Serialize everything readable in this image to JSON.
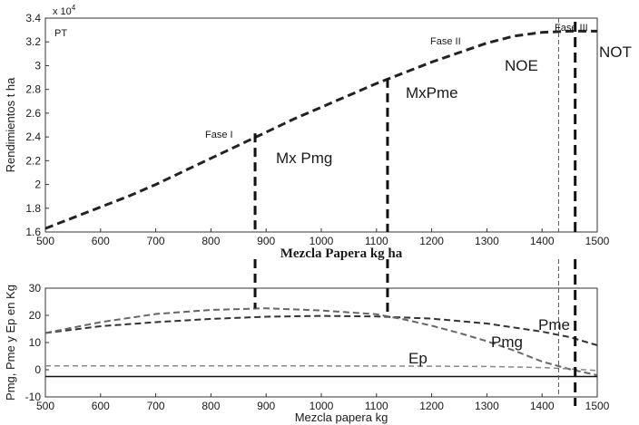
{
  "chart_data": [
    {
      "type": "line",
      "xlabel": "Mezcla Papera kg ha",
      "ylabel": "Rendimientos t ha",
      "y_multiplier": "x 10",
      "y_multiplier_exp": "4",
      "xlim": [
        500,
        1500
      ],
      "ylim": [
        1.6,
        3.4
      ],
      "xticks": [
        500,
        600,
        700,
        800,
        900,
        1000,
        1100,
        1200,
        1300,
        1400,
        1500
      ],
      "yticks": [
        1.6,
        1.8,
        2,
        2.2,
        2.4,
        2.6,
        2.8,
        3,
        3.2,
        3.4
      ],
      "series": [
        {
          "name": "PT",
          "color": "#222222",
          "x": [
            500,
            550,
            600,
            650,
            700,
            750,
            800,
            850,
            900,
            950,
            1000,
            1050,
            1100,
            1150,
            1200,
            1250,
            1300,
            1350,
            1400,
            1450,
            1500
          ],
          "y": [
            1.63,
            1.72,
            1.81,
            1.9,
            2.0,
            2.11,
            2.22,
            2.33,
            2.44,
            2.55,
            2.65,
            2.75,
            2.85,
            2.94,
            3.03,
            3.11,
            3.19,
            3.25,
            3.28,
            3.29,
            3.29
          ]
        }
      ],
      "annotations": {
        "pt": "PT",
        "fase1": "Fase I",
        "fase2": "Fase II",
        "fase3": "Fase III",
        "mx_pmg": "Mx Pmg",
        "mx_pme": "MxPme",
        "noe": "NOE",
        "not": "NOT"
      },
      "vlines": [
        {
          "name": "Mx Pmg",
          "x": 880,
          "y_top": 2.43
        },
        {
          "name": "MxPme",
          "x": 1120,
          "y_top": 2.89
        },
        {
          "name": "NOE",
          "x": 1430
        },
        {
          "name": "NOT",
          "x": 1460
        }
      ]
    },
    {
      "type": "line",
      "xlabel": "Mezcla papera  kg",
      "ylabel": "Pmg, Pme y Ep en Kg",
      "xlim": [
        500,
        1500
      ],
      "ylim": [
        -10,
        30
      ],
      "xticks": [
        500,
        600,
        700,
        800,
        900,
        1000,
        1100,
        1200,
        1300,
        1400,
        1500
      ],
      "yticks": [
        -10,
        0,
        10,
        20,
        30
      ],
      "series": [
        {
          "name": "Pme",
          "color": "#333333",
          "x": [
            500,
            600,
            700,
            800,
            900,
            1000,
            1100,
            1200,
            1300,
            1400,
            1450,
            1500
          ],
          "y": [
            13.5,
            16,
            17.5,
            18.7,
            19.5,
            19.8,
            19.6,
            18.8,
            17,
            14,
            12,
            9
          ]
        },
        {
          "name": "Pmg",
          "color": "#666666",
          "x": [
            500,
            600,
            700,
            800,
            900,
            1000,
            1100,
            1150,
            1200,
            1250,
            1300,
            1350,
            1400,
            1450,
            1500
          ],
          "y": [
            13.5,
            17.5,
            20.5,
            22,
            22.6,
            21.8,
            20.4,
            18.5,
            16.2,
            13.5,
            10.5,
            7,
            3,
            0.2,
            -2
          ]
        },
        {
          "name": "Ep",
          "color": "#888888",
          "x": [
            500,
            600,
            700,
            800,
            900,
            1000,
            1100,
            1200,
            1300,
            1400,
            1450,
            1500
          ],
          "y": [
            1.4,
            1.4,
            1.4,
            1.4,
            1.4,
            1.4,
            1.35,
            1.3,
            1.2,
            0.8,
            0.3,
            -0.3
          ]
        },
        {
          "name": "",
          "color": "#111111",
          "x": [
            500,
            1500
          ],
          "y": [
            -2.5,
            -2.5
          ]
        }
      ],
      "annotations": {
        "pme": "Pme",
        "pmg": "Pmg",
        "ep": "Ep"
      }
    }
  ],
  "colors": {
    "axis": "#333333",
    "main_curve": "#222222",
    "vline": "#111111",
    "thin_vline": "#555555"
  }
}
